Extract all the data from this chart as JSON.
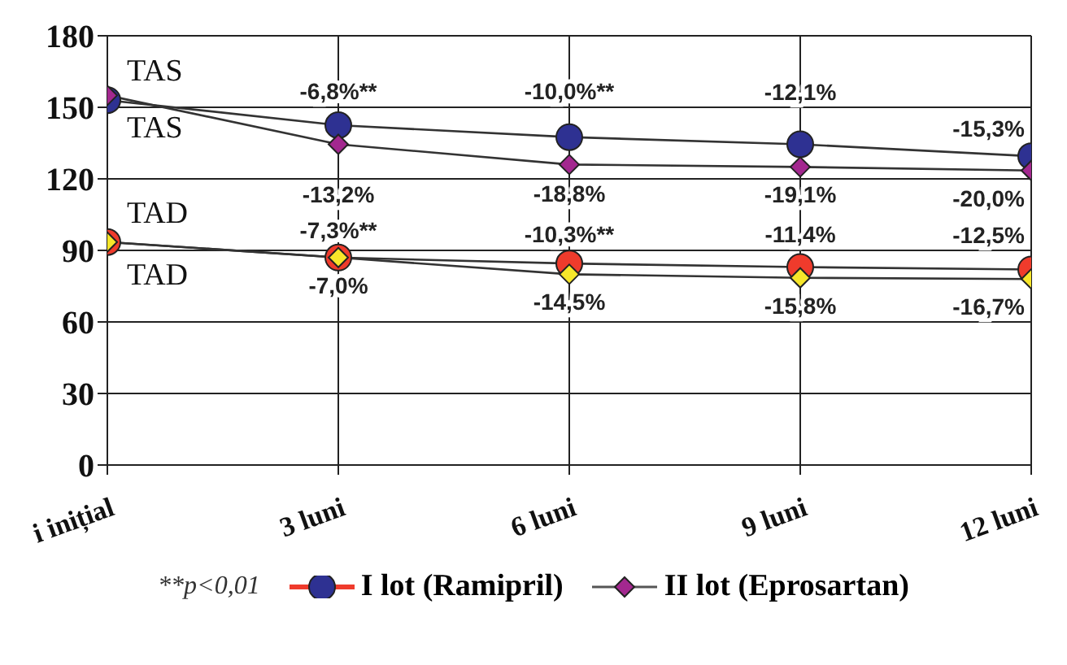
{
  "chart_data": {
    "type": "line",
    "categories": [
      "i inițial",
      "3 luni",
      "6 luni",
      "9 luni",
      "12 luni"
    ],
    "series": [
      {
        "name": "I lot (Ramipril)",
        "color": "#2e3192",
        "marker": "circle",
        "values": [
          153,
          142.5,
          137.5,
          134.5,
          129.5
        ]
      },
      {
        "name": "II lot (Eprosartan)",
        "color": "#a3288f",
        "marker": "diamond",
        "values": [
          155,
          134.5,
          126,
          125,
          123.5
        ]
      },
      {
        "color": "#ef3b2c",
        "marker": "circle",
        "values": [
          93.5,
          87,
          84.5,
          83,
          82
        ]
      },
      {
        "color": "#f7e62a",
        "marker": "diamond",
        "values": [
          93.5,
          87,
          80,
          78.5,
          78
        ]
      }
    ],
    "ylim": [
      0,
      180
    ],
    "yticks": [
      0,
      30,
      60,
      90,
      120,
      150,
      180
    ],
    "grid": true,
    "legend": "bottom",
    "annotations": [
      "TAS",
      "TAS",
      "TAD",
      "TAD",
      "**p<0,01",
      "-6,8%**",
      "-13,2%",
      "-7,3%**",
      "-7,0%",
      "-10,0%**",
      "-18,8%",
      "-10,3%**",
      "-14,5%",
      "-12,1%",
      "-19,1%",
      "-11,4%",
      "-15,8%",
      "-15,3%",
      "-20,0%",
      "-12,5%",
      "-16,7%"
    ]
  }
}
